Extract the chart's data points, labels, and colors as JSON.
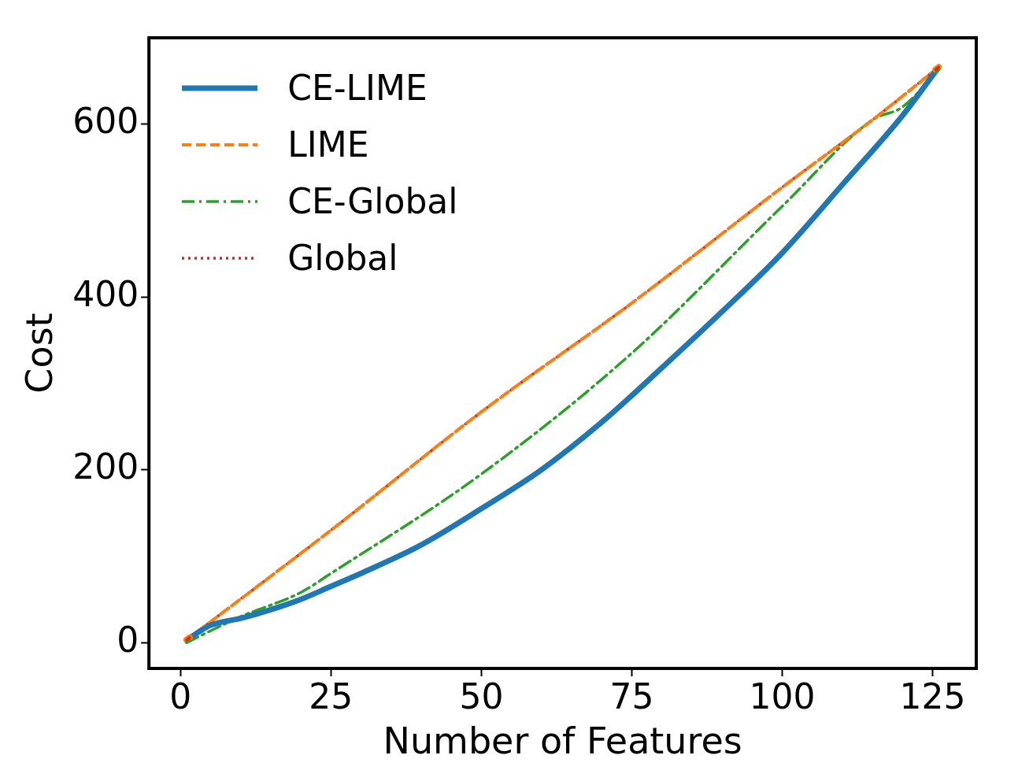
{
  "chart_data": {
    "type": "line",
    "xlabel": "Number of Features",
    "ylabel": "Cost",
    "xlim": [
      -5.25,
      132.25
    ],
    "ylim": [
      -30,
      700
    ],
    "xticks": [
      0,
      25,
      50,
      75,
      100,
      125
    ],
    "yticks": [
      0,
      200,
      400,
      600
    ],
    "grid": false,
    "legend": "top left",
    "marker": "none",
    "series": [
      {
        "name": "CE-LIME",
        "color": "#1f77b4",
        "line_style": "solid",
        "x": [
          1,
          5,
          10,
          15,
          20,
          25,
          30,
          40,
          50,
          60,
          70,
          80,
          90,
          100,
          110,
          120,
          126
        ],
        "values": [
          3,
          20,
          28,
          38,
          50,
          65,
          80,
          113,
          155,
          200,
          255,
          318,
          383,
          451,
          530,
          610,
          666
        ]
      },
      {
        "name": "LIME",
        "color": "#ff7f0e",
        "line_style": "dashed",
        "x": [
          1,
          25,
          50,
          75,
          100,
          115,
          126
        ],
        "values": [
          3,
          130,
          267,
          393,
          527,
          605,
          666
        ]
      },
      {
        "name": "CE-Global",
        "color": "#2ca02c",
        "line_style": "dashdot",
        "x": [
          1,
          10,
          20,
          25,
          50,
          75,
          100,
          115,
          120,
          126
        ],
        "values": [
          0,
          30,
          58,
          80,
          195,
          335,
          505,
          605,
          620,
          663
        ]
      },
      {
        "name": "Global",
        "color": "#d62728",
        "line_style": "dotted",
        "x": [
          1,
          25,
          50,
          75,
          100,
          115,
          126
        ],
        "values": [
          3,
          130,
          267,
          393,
          527,
          605,
          666
        ]
      }
    ]
  }
}
